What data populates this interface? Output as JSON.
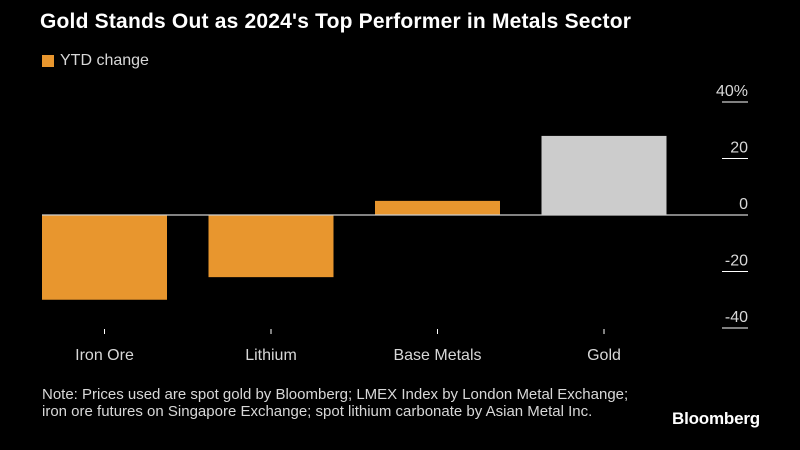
{
  "title": "Gold Stands Out as 2024's Top Performer in Metals Sector",
  "note": "Note: Prices used are spot gold by Bloomberg; LMEX Index by London Metal Exchange; iron ore futures on Singapore Exchange; spot lithium carbonate by Asian Metal Inc.",
  "brand": "Bloomberg",
  "colors": {
    "orange": "#e8962e",
    "gray": "#cccccc",
    "axis": "#ffffff",
    "background": "#000000"
  },
  "chart_data": {
    "type": "bar",
    "title": "Gold Stands Out as 2024's Top Performer in Metals Sector",
    "legend": [
      {
        "name": "YTD change",
        "color": "#e8962e",
        "position": "top-left"
      }
    ],
    "categories": [
      "Iron Ore",
      "Lithium",
      "Base Metals",
      "Gold"
    ],
    "values": [
      -30,
      -22,
      5,
      28
    ],
    "bar_colors": [
      "#e8962e",
      "#e8962e",
      "#e8962e",
      "#cccccc"
    ],
    "ylim": [
      -40,
      40
    ],
    "yticks": [
      40,
      20,
      0,
      -20,
      -40
    ],
    "ytick_labels": [
      "40%",
      "20",
      "0",
      "-20",
      "-40"
    ],
    "yaxis_position": "right",
    "xlabel": "",
    "ylabel": ""
  }
}
